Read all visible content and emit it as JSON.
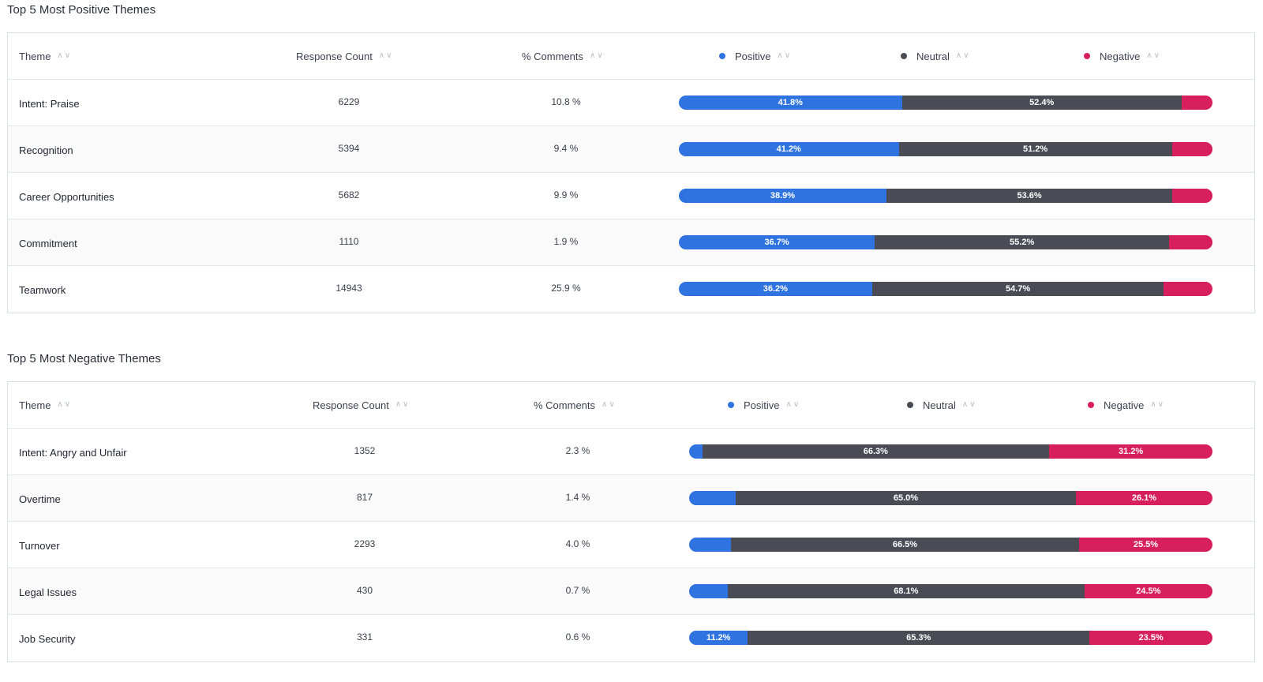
{
  "colors": {
    "positive": "#2f73e0",
    "neutral": "#4a4b55",
    "negative": "#d81f5e"
  },
  "columns": {
    "theme": "Theme",
    "response_count": "Response Count",
    "pct_comments": "% Comments",
    "positive": "Positive",
    "neutral": "Neutral",
    "negative": "Negative"
  },
  "sort_icons": {
    "up": "sort-ascending-icon",
    "down": "sort-descending-icon"
  },
  "positive_section": {
    "title": "Top 5 Most Positive Themes",
    "rows": [
      {
        "theme": "Intent: Praise",
        "count": "6229",
        "pct": "10.8 %",
        "positive": 41.8,
        "neutral": 52.4,
        "negative": 5.8,
        "positive_label": "41.8%",
        "neutral_label": "52.4%",
        "negative_label": ""
      },
      {
        "theme": "Recognition",
        "count": "5394",
        "pct": "9.4 %",
        "positive": 41.2,
        "neutral": 51.2,
        "negative": 7.6,
        "positive_label": "41.2%",
        "neutral_label": "51.2%",
        "negative_label": ""
      },
      {
        "theme": "Career Opportunities",
        "count": "5682",
        "pct": "9.9 %",
        "positive": 38.9,
        "neutral": 53.6,
        "negative": 7.5,
        "positive_label": "38.9%",
        "neutral_label": "53.6%",
        "negative_label": ""
      },
      {
        "theme": "Commitment",
        "count": "1110",
        "pct": "1.9 %",
        "positive": 36.7,
        "neutral": 55.2,
        "negative": 8.1,
        "positive_label": "36.7%",
        "neutral_label": "55.2%",
        "negative_label": ""
      },
      {
        "theme": "Teamwork",
        "count": "14943",
        "pct": "25.9 %",
        "positive": 36.2,
        "neutral": 54.7,
        "negative": 9.1,
        "positive_label": "36.2%",
        "neutral_label": "54.7%",
        "negative_label": ""
      }
    ]
  },
  "negative_section": {
    "title": "Top 5 Most Negative Themes",
    "rows": [
      {
        "theme": "Intent: Angry and Unfair",
        "count": "1352",
        "pct": "2.3 %",
        "positive": 2.5,
        "neutral": 66.3,
        "negative": 31.2,
        "positive_label": "",
        "neutral_label": "66.3%",
        "negative_label": "31.2%"
      },
      {
        "theme": "Overtime",
        "count": "817",
        "pct": "1.4 %",
        "positive": 8.9,
        "neutral": 65.0,
        "negative": 26.1,
        "positive_label": "",
        "neutral_label": "65.0%",
        "negative_label": "26.1%"
      },
      {
        "theme": "Turnover",
        "count": "2293",
        "pct": "4.0 %",
        "positive": 8.0,
        "neutral": 66.5,
        "negative": 25.5,
        "positive_label": "",
        "neutral_label": "66.5%",
        "negative_label": "25.5%"
      },
      {
        "theme": "Legal Issues",
        "count": "430",
        "pct": "0.7 %",
        "positive": 7.4,
        "neutral": 68.1,
        "negative": 24.5,
        "positive_label": "",
        "neutral_label": "68.1%",
        "negative_label": "24.5%"
      },
      {
        "theme": "Job Security",
        "count": "331",
        "pct": "0.6 %",
        "positive": 11.2,
        "neutral": 65.3,
        "negative": 23.5,
        "positive_label": "11.2%",
        "neutral_label": "65.3%",
        "negative_label": "23.5%"
      }
    ]
  }
}
